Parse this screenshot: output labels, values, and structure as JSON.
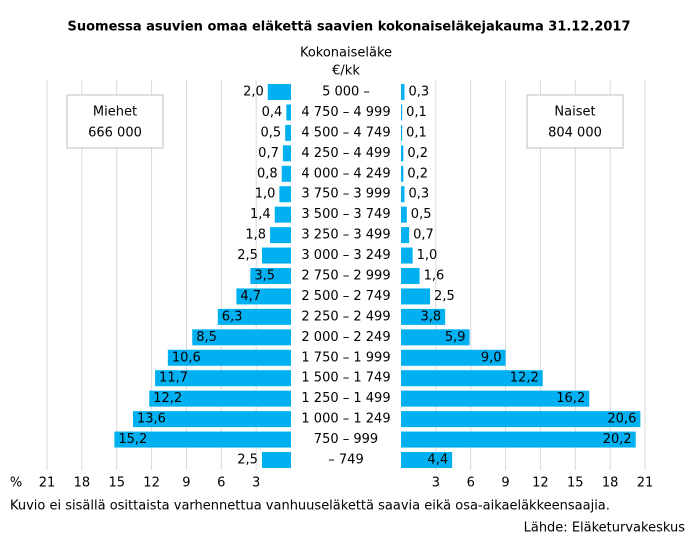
{
  "chart_data": {
    "type": "pyramid",
    "title": "Suomessa asuvien omaa eläkettä saavien kokonaiseläkejakauma 31.12.2017",
    "category_label": "Kokonaiseläke",
    "category_unit": "€/kk",
    "xlabel": "%",
    "categories": [
      "5 000 –",
      "4 750 – 4 999",
      "4 500 – 4 749",
      "4 250 – 4 499",
      "4 000 – 4 249",
      "3 750 – 3 999",
      "3 500 – 3 749",
      "3 250 – 3 499",
      "3 000 – 3 249",
      "2 750 – 2 999",
      "2 500 – 2 749",
      "2 250 – 2 499",
      "2 000 – 2 249",
      "1 750 – 1 999",
      "1 500 – 1 749",
      "1 250 – 1 499",
      "1 000 – 1 249",
      "750 – 999",
      "– 749"
    ],
    "series": [
      {
        "name": "Miehet",
        "total": "666 000",
        "color": "#00b0f0",
        "values": [
          2.0,
          0.4,
          0.5,
          0.7,
          0.8,
          1.0,
          1.4,
          1.8,
          2.5,
          3.5,
          4.7,
          6.3,
          8.5,
          10.6,
          11.7,
          12.2,
          13.6,
          15.2,
          2.5
        ],
        "value_labels": [
          "2,0",
          "0,4",
          "0,5",
          "0,7",
          "0,8",
          "1,0",
          "1,4",
          "1,8",
          "2,5",
          "3,5",
          "4,7",
          "6,3",
          "8,5",
          "10,6",
          "11,7",
          "12,2",
          "13,6",
          "15,2",
          "2,5"
        ]
      },
      {
        "name": "Naiset",
        "total": "804 000",
        "color": "#00b0f0",
        "values": [
          0.3,
          0.1,
          0.1,
          0.2,
          0.2,
          0.3,
          0.5,
          0.7,
          1.0,
          1.6,
          2.5,
          3.8,
          5.9,
          9.0,
          12.2,
          16.2,
          20.6,
          20.2,
          4.4
        ],
        "value_labels": [
          "0,3",
          "0,1",
          "0,1",
          "0,2",
          "0,2",
          "0,3",
          "0,5",
          "0,7",
          "1,0",
          "1,6",
          "2,5",
          "3,8",
          "5,9",
          "9,0",
          "12,2",
          "16,2",
          "20,6",
          "20,2",
          "4,4"
        ]
      }
    ],
    "xlim": [
      0,
      21
    ],
    "xticks": [
      3,
      6,
      9,
      12,
      15,
      18,
      21
    ],
    "grid": true,
    "note": "Kuvio ei sisällä osittaista varhennettua vanhuuseläkettä saavia eikä osa-aikaeläkkeensaajia.",
    "source": "Lähde: Eläketurvakeskus"
  }
}
